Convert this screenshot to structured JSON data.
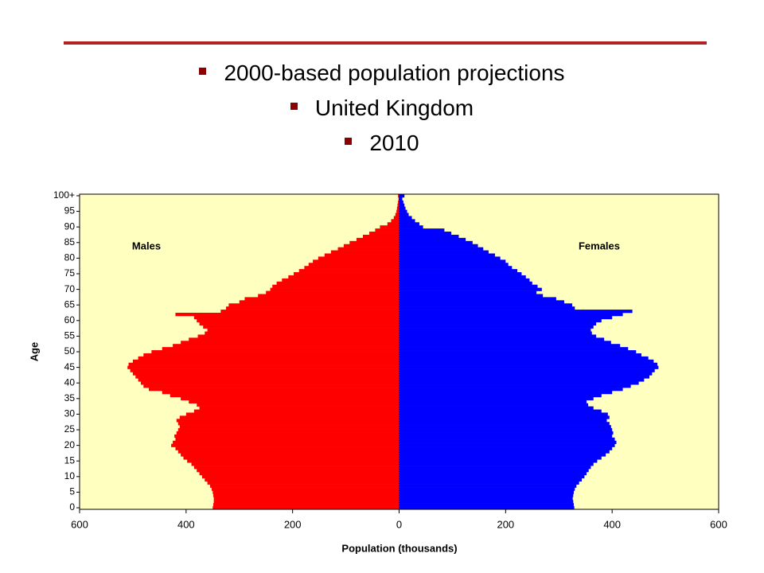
{
  "header": {
    "bullets": [
      "2000-based population projections",
      "United Kingdom",
      "2010"
    ]
  },
  "chart_data": {
    "type": "pyramid",
    "xlabel": "Population (thousands)",
    "ylabel": "Age",
    "annotations": [
      "Males",
      "Females"
    ],
    "background": "#ffffc0",
    "categories": [
      "0",
      null,
      null,
      null,
      null,
      "5",
      null,
      null,
      null,
      null,
      "10",
      null,
      null,
      null,
      null,
      "15",
      null,
      null,
      null,
      null,
      "20",
      null,
      null,
      null,
      null,
      "25",
      null,
      null,
      null,
      null,
      "30",
      null,
      null,
      null,
      null,
      "35",
      null,
      null,
      null,
      null,
      "40",
      null,
      null,
      null,
      null,
      "45",
      null,
      null,
      null,
      null,
      "50",
      null,
      null,
      null,
      null,
      "55",
      null,
      null,
      null,
      null,
      "60",
      null,
      null,
      null,
      null,
      "65",
      null,
      null,
      null,
      null,
      "70",
      null,
      null,
      null,
      null,
      "75",
      null,
      null,
      null,
      null,
      "80",
      null,
      null,
      null,
      null,
      "85",
      null,
      null,
      null,
      null,
      "90",
      null,
      null,
      null,
      null,
      "95",
      null,
      null,
      null,
      null,
      "100+"
    ],
    "xlim": [
      -600,
      600
    ],
    "xticks": [
      {
        "value": -600,
        "label": "600"
      },
      {
        "value": -400,
        "label": "400"
      },
      {
        "value": -200,
        "label": "200"
      },
      0,
      200,
      400,
      600
    ],
    "series": [
      {
        "name": "Males",
        "side": "left",
        "color": "#ff0000",
        "values": [
          350,
          349,
          348,
          348,
          349,
          350,
          352,
          355,
          360,
          365,
          370,
          375,
          380,
          385,
          390,
          398,
          405,
          410,
          415,
          420,
          428,
          425,
          420,
          422,
          418,
          415,
          412,
          415,
          418,
          412,
          400,
          385,
          375,
          380,
          395,
          410,
          430,
          445,
          470,
          480,
          485,
          490,
          495,
          500,
          505,
          510,
          508,
          500,
          490,
          480,
          465,
          445,
          425,
          410,
          395,
          378,
          365,
          360,
          368,
          375,
          380,
          385,
          420,
          335,
          325,
          320,
          300,
          290,
          265,
          250,
          242,
          238,
          230,
          220,
          208,
          198,
          188,
          178,
          170,
          162,
          152,
          140,
          128,
          115,
          104,
          93,
          80,
          68,
          56,
          45,
          36,
          22,
          15,
          10,
          7,
          5,
          4,
          3,
          2,
          1,
          2
        ]
      },
      {
        "name": "Females",
        "side": "right",
        "color": "#0000ff",
        "values": [
          329,
          328,
          327,
          326,
          327,
          328,
          330,
          333,
          338,
          343,
          348,
          352,
          356,
          360,
          365,
          372,
          380,
          388,
          395,
          400,
          405,
          408,
          405,
          400,
          402,
          400,
          398,
          395,
          390,
          395,
          392,
          380,
          365,
          355,
          352,
          365,
          380,
          400,
          420,
          435,
          450,
          460,
          470,
          475,
          480,
          487,
          485,
          478,
          468,
          455,
          445,
          430,
          415,
          398,
          385,
          370,
          362,
          360,
          365,
          370,
          380,
          400,
          420,
          438,
          330,
          325,
          310,
          295,
          270,
          258,
          268,
          260,
          250,
          245,
          238,
          230,
          222,
          212,
          205,
          200,
          190,
          180,
          168,
          158,
          148,
          138,
          125,
          112,
          98,
          85,
          45,
          38,
          30,
          24,
          18,
          15,
          12,
          10,
          8,
          6,
          10
        ]
      }
    ]
  }
}
